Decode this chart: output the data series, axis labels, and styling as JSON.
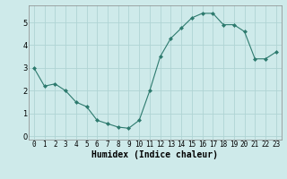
{
  "x": [
    0,
    1,
    2,
    3,
    4,
    5,
    6,
    7,
    8,
    9,
    10,
    11,
    12,
    13,
    14,
    15,
    16,
    17,
    18,
    19,
    20,
    21,
    22,
    23
  ],
  "y": [
    3.0,
    2.2,
    2.3,
    2.0,
    1.5,
    1.3,
    0.7,
    0.55,
    0.4,
    0.35,
    0.7,
    2.0,
    3.5,
    4.3,
    4.75,
    5.2,
    5.4,
    5.4,
    4.9,
    4.9,
    4.6,
    3.4,
    3.4,
    3.7
  ],
  "xlabel": "Humidex (Indice chaleur)",
  "ylim": [
    -0.15,
    5.75
  ],
  "xlim": [
    -0.5,
    23.5
  ],
  "line_color": "#2d7a6e",
  "marker_color": "#2d7a6e",
  "bg_color": "#ceeaea",
  "grid_color": "#b0d4d4",
  "yticks": [
    0,
    1,
    2,
    3,
    4,
    5
  ],
  "xticks": [
    0,
    1,
    2,
    3,
    4,
    5,
    6,
    7,
    8,
    9,
    10,
    11,
    12,
    13,
    14,
    15,
    16,
    17,
    18,
    19,
    20,
    21,
    22,
    23
  ],
  "xlabel_fontsize": 7,
  "tick_fontsize": 5.5
}
